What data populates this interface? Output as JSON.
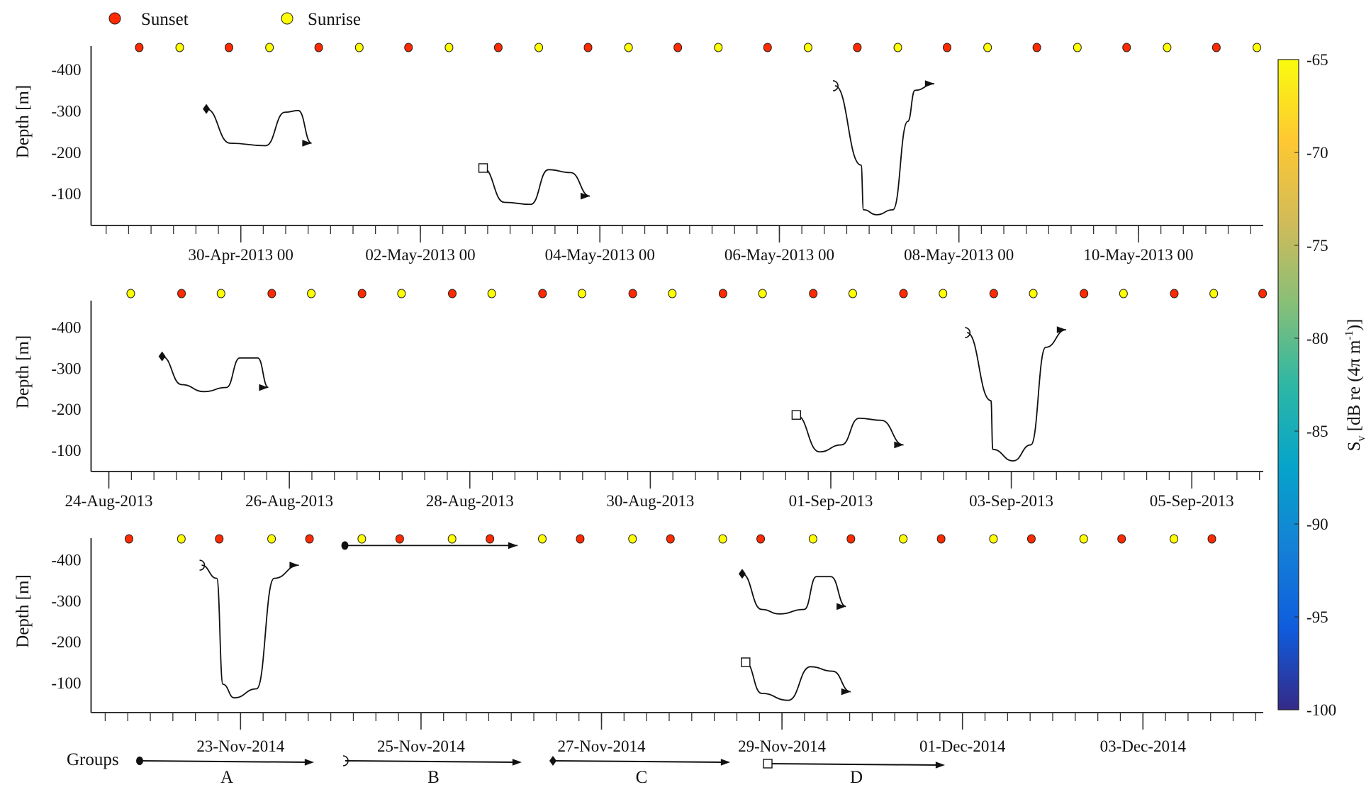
{
  "legend": {
    "sunset_label": "Sunset",
    "sunrise_label": "Sunrise",
    "sunset_color": "#ff2a00",
    "sunrise_color": "#ffff00"
  },
  "groups_legend": {
    "title": "Groups",
    "items": [
      {
        "label": "A",
        "marker": "filled-circle"
      },
      {
        "label": "B",
        "marker": "open-semicircle"
      },
      {
        "label": "C",
        "marker": "filled-diamond"
      },
      {
        "label": "D",
        "marker": "open-square"
      }
    ]
  },
  "colorbar": {
    "label_main": "S",
    "label_sub": "v",
    "label_rest": " [dB re (4π m",
    "label_sup": "-1",
    "label_end": ")]",
    "range": [
      -100,
      -65
    ],
    "ticks": [
      "-65",
      "-70",
      "-75",
      "-80",
      "-85",
      "-90",
      "-95",
      "-100"
    ],
    "colormap": [
      "#352a87",
      "#0f5cdd",
      "#1481d6",
      "#06a4ca",
      "#2eb7a4",
      "#87bf77",
      "#d1bb59",
      "#fec832",
      "#f9fb0e"
    ]
  },
  "chart_data": [
    {
      "type": "heatmap",
      "ylabel": "Depth [m]",
      "ylim": [
        -457,
        -23
      ],
      "data_depth_range": [
        -47,
        -305
      ],
      "yticks": [
        "-100",
        "-200",
        "-300",
        "-400"
      ],
      "xlim": [
        "28-Apr-2013 07:58",
        "11-May-2013 09:22"
      ],
      "xticks": [
        {
          "date": "30-Apr-2013 00:00",
          "label": "30-Apr-2013 00"
        },
        {
          "date": "02-May-2013 00:00",
          "label": "02-May-2013 00"
        },
        {
          "date": "04-May-2013 00:00",
          "label": "04-May-2013 00"
        },
        {
          "date": "06-May-2013 00:00",
          "label": "06-May-2013 00"
        },
        {
          "date": "08-May-2013 00:00",
          "label": "08-May-2013 00"
        },
        {
          "date": "10-May-2013 00:00",
          "label": "10-May-2013 00"
        }
      ],
      "sunsets": [
        "28-Apr-2013 20:50",
        "29-Apr-2013 20:50",
        "30-Apr-2013 20:50",
        "01-May-2013 20:50",
        "02-May-2013 20:50",
        "03-May-2013 20:50",
        "04-May-2013 20:50",
        "05-May-2013 20:50",
        "06-May-2013 20:50",
        "07-May-2013 20:50",
        "08-May-2013 20:50",
        "09-May-2013 20:50",
        "10-May-2013 20:50"
      ],
      "sunrises": [
        "29-Apr-2013 07:40",
        "30-Apr-2013 07:40",
        "01-May-2013 07:40",
        "02-May-2013 07:40",
        "03-May-2013 07:40",
        "04-May-2013 07:40",
        "05-May-2013 07:40",
        "06-May-2013 07:40",
        "07-May-2013 07:40",
        "08-May-2013 07:40",
        "09-May-2013 07:40",
        "10-May-2013 07:40",
        "11-May-2013 07:40"
      ],
      "bottom_band": null,
      "trajectories": [
        {
          "group": "C",
          "points": [
            [
              "29-Apr-2013 14:47",
              -305
            ],
            [
              "29-Apr-2013 21:10",
              -222
            ],
            [
              "30-Apr-2013 06:37",
              -216
            ],
            [
              "30-Apr-2013 11:50",
              -297
            ],
            [
              "30-Apr-2013 15:22",
              -301
            ],
            [
              "30-Apr-2013 18:55",
              -222
            ]
          ]
        },
        {
          "group": "D",
          "points": [
            [
              "02-May-2013 16:47",
              -162
            ],
            [
              "02-May-2013 22:28",
              -79
            ],
            [
              "03-May-2013 05:30",
              -74
            ],
            [
              "03-May-2013 10:15",
              -158
            ],
            [
              "03-May-2013 16:10",
              -151
            ],
            [
              "03-May-2013 21:20",
              -94
            ]
          ]
        },
        {
          "group": "B",
          "points": [
            [
              "06-May-2013 14:54",
              -361
            ],
            [
              "06-May-2013 21:50",
              -169
            ],
            [
              "06-May-2013 22:30",
              -61
            ],
            [
              "07-May-2013 02:00",
              -49
            ],
            [
              "07-May-2013 06:20",
              -61
            ],
            [
              "07-May-2013 10:20",
              -275
            ],
            [
              "07-May-2013 12:15",
              -350
            ],
            [
              "07-May-2013 17:25",
              -366
            ]
          ]
        }
      ]
    },
    {
      "type": "heatmap",
      "ylabel": "Depth [m]",
      "ylim": [
        -465,
        -48
      ],
      "data_depth_range": [
        -74,
        -340
      ],
      "yticks": [
        "-100",
        "-200",
        "-300",
        "-400"
      ],
      "xlim": [
        "23-Aug-2013 19:17",
        "05-Sep-2013 19:00"
      ],
      "xticks": [
        {
          "date": "24-Aug-2013 00:00",
          "label": "24-Aug-2013"
        },
        {
          "date": "26-Aug-2013 00:00",
          "label": "26-Aug-2013"
        },
        {
          "date": "28-Aug-2013 00:00",
          "label": "28-Aug-2013"
        },
        {
          "date": "30-Aug-2013 00:00",
          "label": "30-Aug-2013"
        },
        {
          "date": "01-Sep-2013 00:00",
          "label": "01-Sep-2013"
        },
        {
          "date": "03-Sep-2013 00:00",
          "label": "03-Sep-2013"
        },
        {
          "date": "05-Sep-2013 00:00",
          "label": "05-Sep-2013"
        }
      ],
      "sunsets": [
        "24-Aug-2013 19:20",
        "25-Aug-2013 19:20",
        "26-Aug-2013 19:20",
        "27-Aug-2013 19:20",
        "28-Aug-2013 19:20",
        "29-Aug-2013 19:20",
        "30-Aug-2013 19:20",
        "31-Aug-2013 19:20",
        "01-Sep-2013 19:20",
        "02-Sep-2013 19:20",
        "03-Sep-2013 19:20",
        "04-Sep-2013 19:20",
        "05-Sep-2013 18:50"
      ],
      "sunrises": [
        "24-Aug-2013 05:50",
        "25-Aug-2013 05:50",
        "26-Aug-2013 05:50",
        "27-Aug-2013 05:50",
        "28-Aug-2013 05:50",
        "29-Aug-2013 05:50",
        "30-Aug-2013 05:50",
        "31-Aug-2013 05:50",
        "01-Sep-2013 05:50",
        "02-Sep-2013 05:50",
        "03-Sep-2013 05:50",
        "04-Sep-2013 05:50",
        "05-Sep-2013 05:50"
      ],
      "bottom_band": null,
      "trajectories": [
        {
          "group": "C",
          "points": [
            [
              "24-Aug-2013 14:10",
              -329
            ],
            [
              "24-Aug-2013 19:24",
              -260
            ],
            [
              "25-Aug-2013 01:20",
              -243
            ],
            [
              "25-Aug-2013 07:15",
              -253
            ],
            [
              "25-Aug-2013 10:50",
              -325
            ],
            [
              "25-Aug-2013 15:35",
              -325
            ],
            [
              "25-Aug-2013 18:25",
              -253
            ]
          ]
        },
        {
          "group": "D",
          "points": [
            [
              "31-Aug-2013 14:50",
              -186
            ],
            [
              "31-Aug-2013 21:00",
              -96
            ],
            [
              "01-Sep-2013 02:50",
              -113
            ],
            [
              "01-Sep-2013 07:30",
              -178
            ],
            [
              "01-Sep-2013 13:25",
              -173
            ],
            [
              "01-Sep-2013 19:20",
              -113
            ]
          ]
        },
        {
          "group": "B",
          "points": [
            [
              "02-Sep-2013 12:15",
              -387
            ],
            [
              "02-Sep-2013 18:35",
              -221
            ],
            [
              "02-Sep-2013 19:05",
              -102
            ],
            [
              "03-Sep-2013 00:30",
              -74
            ],
            [
              "03-Sep-2013 05:10",
              -113
            ],
            [
              "03-Sep-2013 09:10",
              -351
            ],
            [
              "03-Sep-2013 14:35",
              -394
            ]
          ]
        }
      ]
    },
    {
      "type": "heatmap",
      "ylabel": "Depth [m]",
      "ylim": [
        -453,
        -27
      ],
      "data_depth_range": [
        -52,
        -452
      ],
      "yticks": [
        "-100",
        "-200",
        "-300",
        "-400"
      ],
      "xlim": [
        "21-Nov-2014 08:15",
        "04-Dec-2014 08:00"
      ],
      "xticks": [
        {
          "date": "23-Nov-2014 00:00",
          "label": "23-Nov-2014"
        },
        {
          "date": "25-Nov-2014 00:00",
          "label": "25-Nov-2014"
        },
        {
          "date": "27-Nov-2014 00:00",
          "label": "27-Nov-2014"
        },
        {
          "date": "29-Nov-2014 00:00",
          "label": "29-Nov-2014"
        },
        {
          "date": "01-Dec-2014 00:00",
          "label": "01-Dec-2014"
        },
        {
          "date": "03-Dec-2014 00:00",
          "label": "03-Dec-2014"
        }
      ],
      "sunsets": [
        "21-Nov-2014 18:20",
        "22-Nov-2014 18:20",
        "23-Nov-2014 18:20",
        "24-Nov-2014 18:20",
        "25-Nov-2014 18:20",
        "26-Nov-2014 18:20",
        "27-Nov-2014 18:20",
        "28-Nov-2014 18:20",
        "29-Nov-2014 18:20",
        "30-Nov-2014 18:20",
        "01-Dec-2014 18:20",
        "02-Dec-2014 18:20",
        "03-Dec-2014 18:20"
      ],
      "sunrises": [
        "22-Nov-2014 08:15",
        "23-Nov-2014 08:15",
        "24-Nov-2014 08:15",
        "25-Nov-2014 08:15",
        "26-Nov-2014 08:15",
        "27-Nov-2014 08:15",
        "28-Nov-2014 08:15",
        "29-Nov-2014 08:15",
        "30-Nov-2014 08:15",
        "01-Dec-2014 08:15",
        "02-Dec-2014 08:15",
        "03-Dec-2014 08:15"
      ],
      "bottom_band": [
        -385,
        -452
      ],
      "trajectories": [
        {
          "group": "B",
          "points": [
            [
              "22-Nov-2014 13:40",
              -387
            ],
            [
              "22-Nov-2014 17:40",
              -355
            ],
            [
              "22-Nov-2014 19:20",
              -96
            ],
            [
              "22-Nov-2014 22:20",
              -63
            ],
            [
              "23-Nov-2014 04:15",
              -85
            ],
            [
              "23-Nov-2014 08:57",
              -355
            ],
            [
              "23-Nov-2014 15:30",
              -387
            ]
          ]
        },
        {
          "group": "A",
          "points": [
            [
              "24-Nov-2014 03:45",
              -435
            ],
            [
              "26-Nov-2014 01:40",
              -435
            ]
          ]
        },
        {
          "group": "D",
          "points": [
            [
              "28-Nov-2014 14:20",
              -150
            ],
            [
              "28-Nov-2014 18:35",
              -74
            ],
            [
              "29-Nov-2014 01:40",
              -57
            ],
            [
              "29-Nov-2014 07:35",
              -139
            ],
            [
              "29-Nov-2014 13:30",
              -128
            ],
            [
              "29-Nov-2014 18:15",
              -78
            ]
          ]
        },
        {
          "group": "C",
          "points": [
            [
              "28-Nov-2014 13:25",
              -366
            ],
            [
              "28-Nov-2014 18:35",
              -279
            ],
            [
              "28-Nov-2014 23:20",
              -268
            ],
            [
              "29-Nov-2014 05:55",
              -279
            ],
            [
              "29-Nov-2014 09:10",
              -359
            ],
            [
              "29-Nov-2014 13:00",
              -359
            ],
            [
              "29-Nov-2014 17:00",
              -286
            ]
          ]
        }
      ]
    }
  ]
}
